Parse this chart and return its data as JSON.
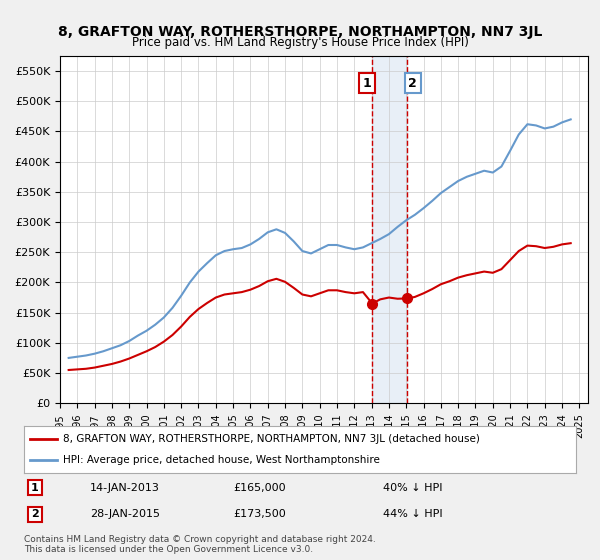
{
  "title": "8, GRAFTON WAY, ROTHERSTHORPE, NORTHAMPTON, NN7 3JL",
  "subtitle": "Price paid vs. HM Land Registry's House Price Index (HPI)",
  "legend_line1": "8, GRAFTON WAY, ROTHERSTHORPE, NORTHAMPTON, NN7 3JL (detached house)",
  "legend_line2": "HPI: Average price, detached house, West Northamptonshire",
  "transaction1_label": "1",
  "transaction1_date": "14-JAN-2013",
  "transaction1_price": "£165,000",
  "transaction1_hpi": "40% ↓ HPI",
  "transaction2_label": "2",
  "transaction2_date": "28-JAN-2015",
  "transaction2_price": "£173,500",
  "transaction2_hpi": "44% ↓ HPI",
  "footnote": "Contains HM Land Registry data © Crown copyright and database right 2024.\nThis data is licensed under the Open Government Licence v3.0.",
  "red_color": "#cc0000",
  "blue_color": "#6699cc",
  "marker1_x": 2013.04,
  "marker1_y": 165000,
  "marker2_x": 2015.07,
  "marker2_y": 173500,
  "vline1_x": 2013.04,
  "vline2_x": 2015.07,
  "ylim": [
    0,
    575000
  ],
  "xlim_start": 1995,
  "xlim_end": 2025.5,
  "background_color": "#f0f0f0",
  "plot_bg_color": "#ffffff"
}
